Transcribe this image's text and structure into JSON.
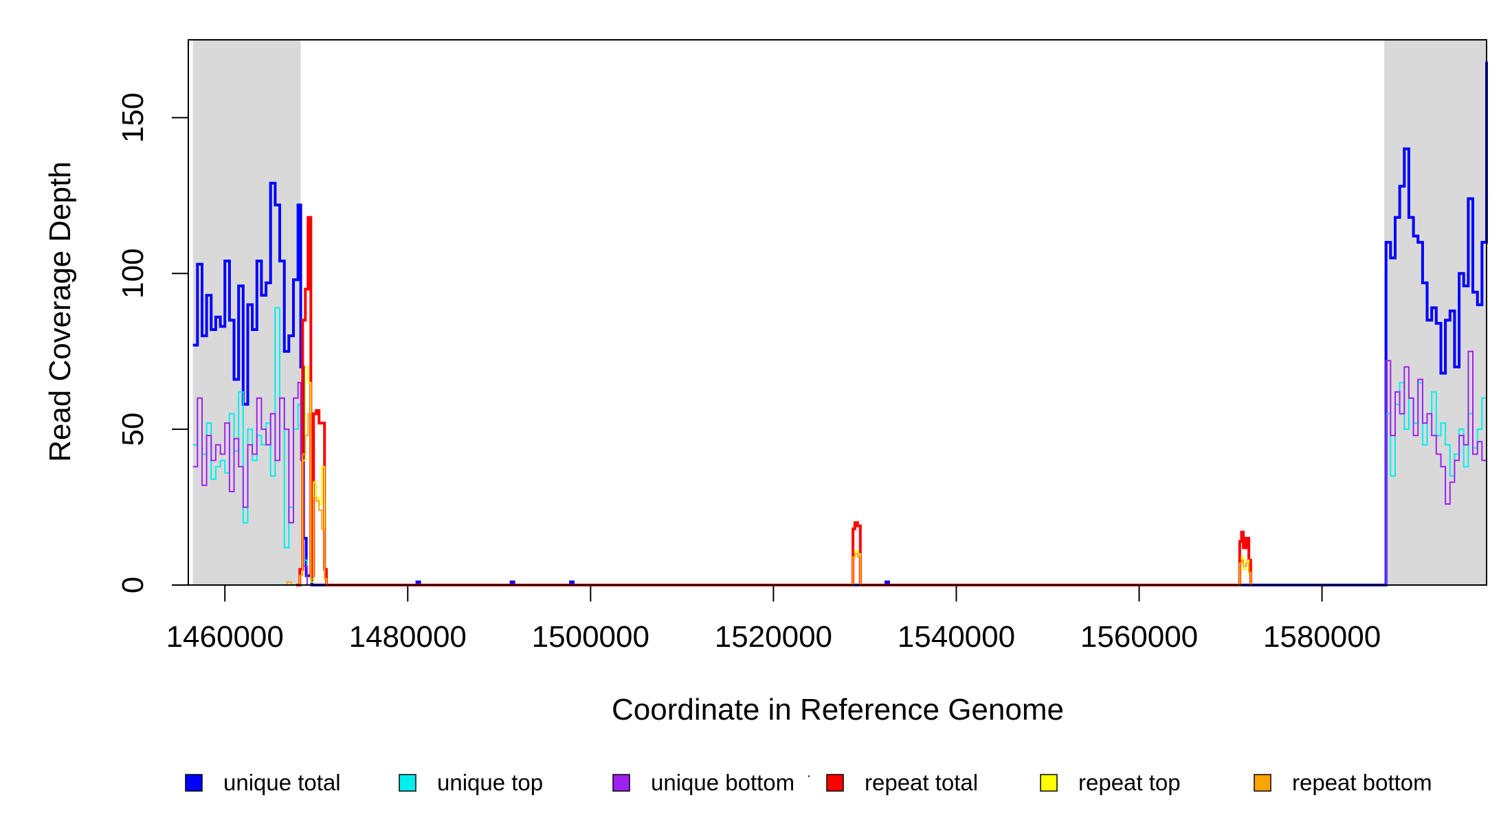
{
  "chart_data": {
    "type": "line",
    "xlabel": "Coordinate in Reference Genome",
    "ylabel": "Read Coverage Depth",
    "xlim": [
      1456000,
      1598000
    ],
    "ylim": [
      0,
      175
    ],
    "x_ticks": [
      1460000,
      1480000,
      1500000,
      1520000,
      1540000,
      1560000,
      1580000
    ],
    "x_tick_labels": [
      "1460000",
      "1480000",
      "1500000",
      "1520000",
      "1540000",
      "1560000",
      "1580000"
    ],
    "y_ticks": [
      0,
      50,
      100,
      150
    ],
    "y_tick_labels": [
      "0",
      "50",
      "100",
      "150"
    ],
    "shaded_regions": [
      {
        "x": [
          1456500,
          1468300
        ],
        "color": "#d9d9d9"
      },
      {
        "x": [
          1586800,
          1598000
        ],
        "color": "#d9d9d9"
      }
    ],
    "legend_position": "bottom",
    "legend_marker": "·",
    "series": [
      {
        "name": "unique total",
        "color": "#0000ff",
        "width": 4,
        "x": [
          1456500,
          1457000,
          1457500,
          1458000,
          1458500,
          1459000,
          1459500,
          1460000,
          1460500,
          1461000,
          1461500,
          1462000,
          1462500,
          1463000,
          1463500,
          1464000,
          1464500,
          1465000,
          1465500,
          1466000,
          1466500,
          1467000,
          1467500,
          1468000,
          1468300,
          1468600,
          1468900,
          1469500,
          1470500,
          1471000,
          1480500,
          1481000,
          1481300,
          1490800,
          1491300,
          1491600,
          1497300,
          1497800,
          1498100,
          1531800,
          1532300,
          1532600,
          1586700,
          1587000,
          1587500,
          1588000,
          1588500,
          1589000,
          1589500,
          1590000,
          1590500,
          1591000,
          1591500,
          1592000,
          1592500,
          1593000,
          1593500,
          1594000,
          1594500,
          1595000,
          1595500,
          1596000,
          1596500,
          1597000,
          1597500,
          1598000
        ],
        "y": [
          77,
          103,
          80,
          93,
          82,
          86,
          83,
          104,
          85,
          66,
          96,
          58,
          90,
          82,
          104,
          93,
          97,
          129,
          122,
          104,
          75,
          80,
          98,
          122,
          70,
          15,
          3,
          0,
          0,
          0,
          0,
          1,
          0,
          0,
          1,
          0,
          0,
          1,
          0,
          0,
          1,
          0,
          0,
          110,
          105,
          118,
          128,
          140,
          118,
          112,
          110,
          97,
          85,
          89,
          84,
          68,
          85,
          88,
          70,
          100,
          96,
          124,
          94,
          90,
          110,
          168
        ]
      },
      {
        "name": "unique top",
        "color": "#00eeee",
        "width": 2,
        "x": [
          1456500,
          1457000,
          1457500,
          1458000,
          1458500,
          1459000,
          1459500,
          1460000,
          1460500,
          1461000,
          1461500,
          1462000,
          1462500,
          1463000,
          1463500,
          1464000,
          1464500,
          1465000,
          1465500,
          1466000,
          1466500,
          1467000,
          1467500,
          1468000,
          1468300,
          1468600,
          1469000,
          1471000,
          1586700,
          1587000,
          1587500,
          1588000,
          1588500,
          1589000,
          1589500,
          1590000,
          1590500,
          1591000,
          1591500,
          1592000,
          1592500,
          1593000,
          1593500,
          1594000,
          1594500,
          1595000,
          1595500,
          1596000,
          1596500,
          1597000,
          1597500,
          1598000
        ],
        "y": [
          45,
          60,
          42,
          52,
          34,
          38,
          40,
          36,
          55,
          43,
          62,
          20,
          50,
          40,
          48,
          45,
          52,
          35,
          89,
          60,
          12,
          25,
          50,
          58,
          40,
          8,
          0,
          0,
          0,
          55,
          35,
          58,
          65,
          50,
          60,
          52,
          65,
          45,
          55,
          62,
          48,
          52,
          45,
          35,
          42,
          50,
          38,
          55,
          44,
          50,
          60,
          90
        ]
      },
      {
        "name": "unique bottom",
        "color": "#a020f0",
        "width": 2,
        "x": [
          1456500,
          1457000,
          1457500,
          1458000,
          1458500,
          1459000,
          1459500,
          1460000,
          1460500,
          1461000,
          1461500,
          1462000,
          1462500,
          1463000,
          1463500,
          1464000,
          1464500,
          1465000,
          1465500,
          1466000,
          1466500,
          1467000,
          1467500,
          1468000,
          1468300,
          1468600,
          1469000,
          1471000,
          1586700,
          1587000,
          1587500,
          1588000,
          1588500,
          1589000,
          1589500,
          1590000,
          1590500,
          1591000,
          1591500,
          1592000,
          1592500,
          1593000,
          1593500,
          1594000,
          1594500,
          1595000,
          1595500,
          1596000,
          1596500,
          1597000,
          1597500,
          1598000
        ],
        "y": [
          38,
          60,
          32,
          48,
          40,
          45,
          42,
          52,
          30,
          47,
          38,
          25,
          45,
          42,
          60,
          50,
          45,
          55,
          40,
          60,
          50,
          20,
          60,
          65,
          40,
          6,
          0,
          0,
          0,
          72,
          48,
          62,
          55,
          70,
          60,
          48,
          66,
          52,
          55,
          48,
          42,
          38,
          26,
          33,
          40,
          48,
          45,
          75,
          42,
          46,
          40,
          66
        ]
      },
      {
        "name": "repeat total",
        "color": "#ff0000",
        "width": 4,
        "x": [
          1467800,
          1468200,
          1468500,
          1468800,
          1469100,
          1469400,
          1469700,
          1470000,
          1470300,
          1470600,
          1470900,
          1471100,
          1528500,
          1528700,
          1528900,
          1529200,
          1529500,
          1529700,
          1570800,
          1571000,
          1571200,
          1571400,
          1571700,
          1572000,
          1572200
        ],
        "y": [
          0,
          5,
          85,
          95,
          118,
          3,
          55,
          56,
          52,
          52,
          5,
          0,
          0,
          18,
          20,
          19,
          0,
          0,
          0,
          14,
          17,
          12,
          15,
          8,
          0
        ]
      },
      {
        "name": "repeat top",
        "color": "#ffff00",
        "width": 2,
        "x": [
          1467800,
          1468200,
          1468500,
          1468800,
          1469100,
          1469400,
          1469700,
          1470000,
          1470300,
          1470600,
          1470900,
          1471100,
          1528500,
          1528700,
          1528900,
          1529200,
          1529500,
          1529700,
          1570800,
          1571000,
          1571200,
          1571400,
          1571700,
          1572000,
          1572200
        ],
        "y": [
          0,
          3,
          40,
          70,
          65,
          1,
          33,
          28,
          26,
          38,
          2,
          0,
          0,
          9,
          11,
          10,
          0,
          0,
          0,
          7,
          9,
          5,
          8,
          4,
          0
        ]
      },
      {
        "name": "repeat bottom",
        "color": "#ffa500",
        "width": 2,
        "x": [
          1456500,
          1466200,
          1466800,
          1467300,
          1467800,
          1468200,
          1468500,
          1468800,
          1469100,
          1469400,
          1469700,
          1470000,
          1470300,
          1470600,
          1470900,
          1471100,
          1528500,
          1528700,
          1528900,
          1529200,
          1529500,
          1529700,
          1570800,
          1571000,
          1571200,
          1571400,
          1571700,
          1572000,
          1572200,
          1598000
        ],
        "y": [
          0,
          0,
          1,
          0,
          0,
          3,
          42,
          48,
          55,
          2,
          28,
          27,
          24,
          18,
          2,
          0,
          0,
          9,
          10,
          9,
          0,
          0,
          0,
          7,
          8,
          6,
          7,
          4,
          0,
          0
        ]
      }
    ]
  }
}
